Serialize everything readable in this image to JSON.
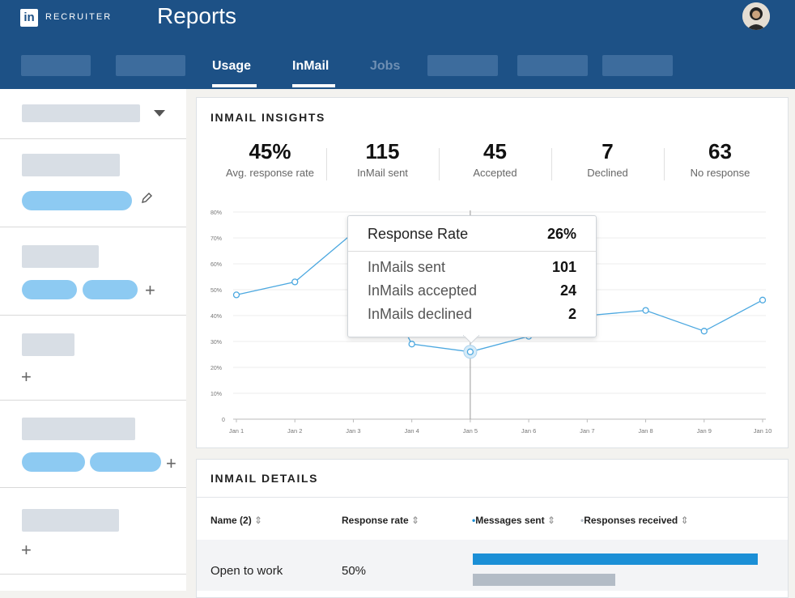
{
  "header": {
    "logo_text": "in",
    "brand": "RECRUITER",
    "title": "Reports",
    "tabs": [
      {
        "label": "Usage",
        "active": true
      },
      {
        "label": "InMail",
        "active": true
      },
      {
        "label": "Jobs",
        "active": false
      }
    ]
  },
  "insights": {
    "title": "INMAIL INSIGHTS",
    "stats": [
      {
        "value": "45%",
        "label": "Avg. response rate"
      },
      {
        "value": "115",
        "label": "InMail sent"
      },
      {
        "value": "45",
        "label": "Accepted"
      },
      {
        "value": "7",
        "label": "Declined"
      },
      {
        "value": "63",
        "label": "No response"
      }
    ]
  },
  "chart_data": {
    "type": "line",
    "x": [
      "Jan 1",
      "Jan 2",
      "Jan 3",
      "Jan 4",
      "Jan 5",
      "Jan 6",
      "Jan 7",
      "Jan 8",
      "Jan 9",
      "Jan 10"
    ],
    "y_ticks": [
      "0",
      "10%",
      "20%",
      "30%",
      "40%",
      "50%",
      "60%",
      "70%",
      "80%"
    ],
    "ylim": [
      0,
      80
    ],
    "series": [
      {
        "values": [
          48,
          53,
          72,
          29,
          26,
          32,
          40,
          42,
          34,
          46
        ]
      }
    ],
    "color": "#4ca8e0",
    "grid": true,
    "highlight_index": 4
  },
  "tooltip": {
    "title": "Response Rate",
    "title_value": "26%",
    "rows": [
      {
        "label": "InMails sent",
        "value": "101"
      },
      {
        "label": "InMails accepted",
        "value": "24"
      },
      {
        "label": "InMails declined",
        "value": "2"
      }
    ]
  },
  "details": {
    "title": "INMAIL DETAILS",
    "columns": {
      "name": "Name (2)",
      "response_rate": "Response rate",
      "messages_sent": "Messages sent",
      "responses_received": "Responses received"
    },
    "rows": [
      {
        "name": "Open to work",
        "response_rate": "50%",
        "messages_sent_fraction": 1.0,
        "responses_received_fraction": 0.5
      }
    ]
  },
  "colors": {
    "header": "#1d5186",
    "accent": "#4ca8e0",
    "bar_sent": "#1b8fd6",
    "bar_received": "#b3bcc6"
  }
}
